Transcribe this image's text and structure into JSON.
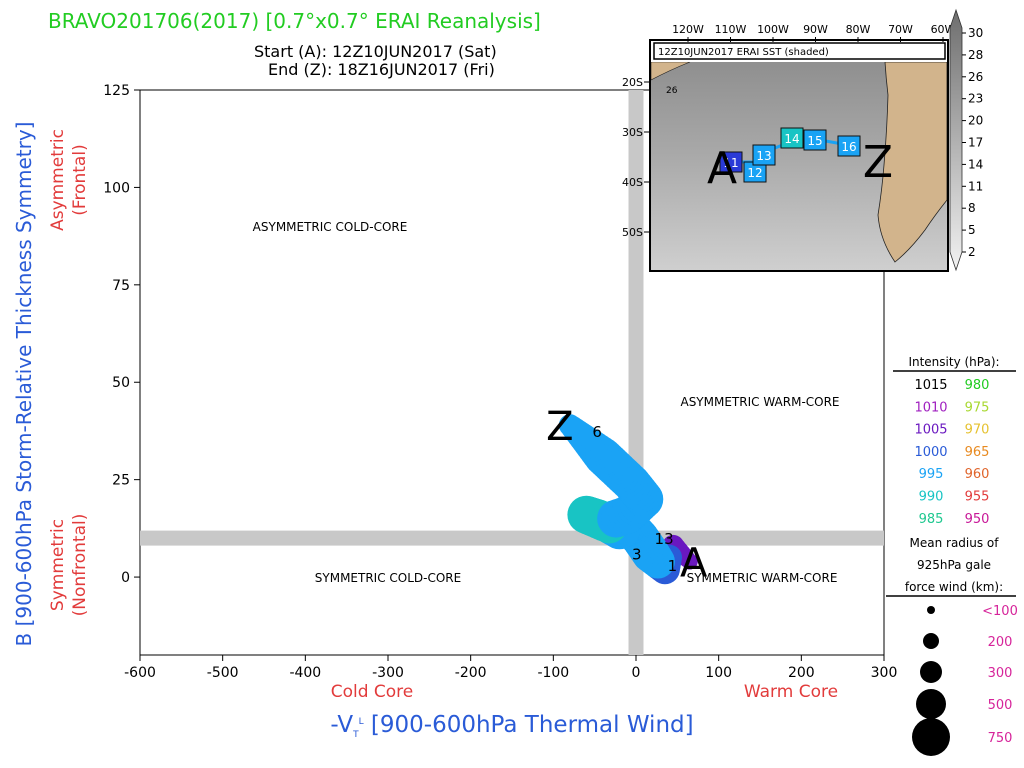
{
  "header": {
    "title": "BRAVO201706(2017) [0.7°x0.7° ERAI Reanalysis]",
    "start": "Start (A): 12Z10JUN2017 (Sat)",
    "end": "End (Z): 18Z16JUN2017 (Fri)"
  },
  "colors": {
    "title": "#22cc22",
    "axis_label_blue": "#2a5bd7",
    "axis_label_red": "#e23b3b",
    "track": "#1aa3f5",
    "track_teal": "#18c4c4",
    "track_purple": "#6a18c0",
    "quadrant_lines": "#c8c8c8",
    "land": "#d2b48c"
  },
  "chart_data": {
    "type": "scatter",
    "xlabel": "-V_T^L [900-600hPa Thermal Wind]",
    "ylabel": "B [900-600hPa Storm-Relative Thickness Symmetry]",
    "xlim": [
      -600,
      300
    ],
    "ylim": [
      -20,
      125
    ],
    "x_ticks": [
      -600,
      -500,
      -400,
      -300,
      -200,
      -100,
      0,
      100,
      200,
      300
    ],
    "y_ticks": [
      0,
      25,
      50,
      75,
      100,
      125
    ],
    "x_tick_labels": [
      "-600",
      "-500",
      "-400",
      "-300",
      "-200",
      "-100",
      "0",
      "100",
      "200",
      "300"
    ],
    "y_tick_labels": [
      "0",
      "25",
      "50",
      "75",
      "100",
      "125"
    ],
    "x_divider": 0,
    "y_divider": 10,
    "x_side_labels": {
      "left": "Cold Core",
      "right": "Warm Core"
    },
    "y_side_labels": {
      "upper": {
        "line1": "Asymmetric",
        "line2": "(Frontal)"
      },
      "lower": {
        "line1": "Symmetric",
        "line2": "(Nonfrontal)"
      }
    },
    "quadrants": {
      "upper_left": "ASYMMETRIC COLD-CORE",
      "upper_right": "ASYMMETRIC WARM-CORE",
      "lower_left": "SYMMETRIC COLD-CORE",
      "lower_right": "SYMMETRIC WARM-CORE"
    },
    "start_label": "A",
    "end_label": "Z",
    "track": [
      {
        "x": 65,
        "y": 4,
        "pressure": 1010,
        "radius_km": 200
      },
      {
        "x": 45,
        "y": 8,
        "pressure": 1010,
        "radius_km": 300
      },
      {
        "x": 35,
        "y": 2,
        "pressure": 1000,
        "radius_km": 500
      },
      {
        "x": 18,
        "y": 6,
        "pressure": 995,
        "radius_km": 750
      },
      {
        "x": 5,
        "y": 10,
        "pressure": 995,
        "radius_km": 750
      },
      {
        "x": -8,
        "y": 13,
        "pressure": 995,
        "radius_km": 750
      },
      {
        "x": -20,
        "y": 12,
        "pressure": 995,
        "radius_km": 750
      },
      {
        "x": -45,
        "y": 15,
        "pressure": 990,
        "radius_km": 750
      },
      {
        "x": -60,
        "y": 16,
        "pressure": 990,
        "radius_km": 750
      },
      {
        "x": -38,
        "y": 14,
        "pressure": 990,
        "radius_km": 750
      },
      {
        "x": -10,
        "y": 16,
        "pressure": 995,
        "radius_km": 750
      },
      {
        "x": 10,
        "y": 20,
        "pressure": 995,
        "radius_km": 750
      },
      {
        "x": -5,
        "y": 24,
        "pressure": 995,
        "radius_km": 750
      },
      {
        "x": -25,
        "y": 28,
        "pressure": 995,
        "radius_km": 750
      },
      {
        "x": -40,
        "y": 31,
        "pressure": 995,
        "radius_km": 750
      },
      {
        "x": -60,
        "y": 35,
        "pressure": 995,
        "radius_km": 500
      },
      {
        "x": -80,
        "y": 39,
        "pressure": 995,
        "radius_km": 300
      }
    ],
    "day_labels": [
      {
        "text": "3",
        "x": 1,
        "y": 4.5
      },
      {
        "text": "6",
        "x": -47,
        "y": 36
      },
      {
        "text": "13",
        "x": 34,
        "y": 8.5
      },
      {
        "text": "1",
        "x": 44,
        "y": 1.5
      }
    ]
  },
  "inset_map": {
    "title": "12Z10JUN2017 ERAI SST (shaded)",
    "lon_labels": [
      "120W",
      "110W",
      "100W",
      "90W",
      "80W",
      "70W",
      "60W"
    ],
    "lat_labels": [
      "20S",
      "30S",
      "40S",
      "50S"
    ],
    "contour_label": "26",
    "start_label": "A",
    "end_label": "Z",
    "track_days": [
      {
        "text": "11",
        "type": "dark"
      },
      {
        "text": "12",
        "type": "light"
      },
      {
        "text": "13",
        "type": "light"
      },
      {
        "text": "14",
        "type": "teal"
      },
      {
        "text": "15",
        "type": "light"
      },
      {
        "text": "16",
        "type": "light"
      }
    ],
    "colorbar_labels": [
      "30",
      "28",
      "26",
      "23",
      "20",
      "17",
      "14",
      "11",
      "8",
      "5",
      "2"
    ]
  },
  "legend": {
    "intensity_title": "Intensity (hPa):",
    "intensity_rows": [
      {
        "left": "1015",
        "left_color": "#000000",
        "right": "980",
        "right_color": "#22cc22"
      },
      {
        "left": "1010",
        "left_color": "#a020c0",
        "right": "975",
        "right_color": "#a8d830"
      },
      {
        "left": "1005",
        "left_color": "#6a18c0",
        "right": "970",
        "right_color": "#e6c230"
      },
      {
        "left": "1000",
        "left_color": "#2a5bd7",
        "right": "965",
        "right_color": "#e88a20"
      },
      {
        "left": "995",
        "left_color": "#1aa3f5",
        "right": "960",
        "right_color": "#e0642a"
      },
      {
        "left": "990",
        "left_color": "#18c4c4",
        "right": "955",
        "right_color": "#e23b3b"
      },
      {
        "left": "985",
        "left_color": "#20c890",
        "right": "950",
        "right_color": "#c81898"
      }
    ],
    "radius_title_lines": [
      "Mean radius of",
      "925hPa gale",
      "force wind (km):"
    ],
    "radius_rows": [
      {
        "label": "<100",
        "r_km": 100
      },
      {
        "label": "200",
        "r_km": 200
      },
      {
        "label": "300",
        "r_km": 300
      },
      {
        "label": "500",
        "r_km": 500
      },
      {
        "label": "750",
        "r_km": 750
      }
    ],
    "radius_label_color": "#d6249a"
  }
}
